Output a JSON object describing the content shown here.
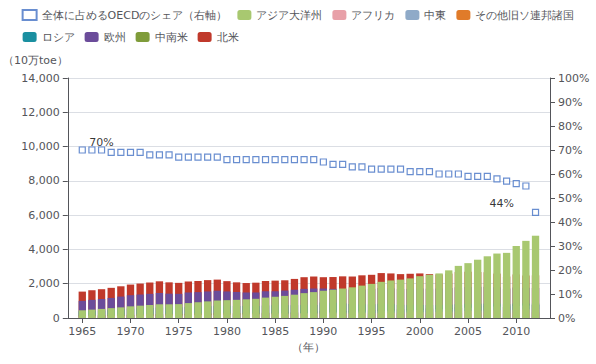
{
  "chart_data": {
    "type": "bar",
    "stacked": true,
    "grid": true,
    "legend": "top",
    "xlabel": "（年）",
    "ylabel": "（10万toe）",
    "x": [
      1965,
      1966,
      1967,
      1968,
      1969,
      1970,
      1971,
      1972,
      1973,
      1974,
      1975,
      1976,
      1977,
      1978,
      1979,
      1980,
      1981,
      1982,
      1983,
      1984,
      1985,
      1986,
      1987,
      1988,
      1989,
      1990,
      1991,
      1992,
      1993,
      1994,
      1995,
      1996,
      1997,
      1998,
      1999,
      2000,
      2001,
      2002,
      2003,
      2004,
      2005,
      2006,
      2007,
      2008,
      2009,
      2010,
      2011,
      2012
    ],
    "xlim": [
      1963.5,
      2013.5
    ],
    "xticks": [
      1965,
      1970,
      1975,
      1980,
      1985,
      1990,
      1995,
      2000,
      2005,
      2010
    ],
    "ylim": [
      0,
      14000
    ],
    "yticks": [
      0,
      {
        "value": 2000,
        "label": "2,000"
      },
      {
        "value": 4000,
        "label": "4,000"
      },
      {
        "value": 6000,
        "label": "6,000"
      },
      {
        "value": 8000,
        "label": "8,000"
      },
      {
        "value": 10000,
        "label": "10,000"
      },
      {
        "value": 12000,
        "label": "12,000"
      },
      {
        "value": 14000,
        "label": "14,000"
      }
    ],
    "y2lim": [
      0,
      1
    ],
    "y2ticks": [
      {
        "value": 0,
        "label": "0%"
      },
      {
        "value": 0.1,
        "label": "10%"
      },
      {
        "value": 0.2,
        "label": "20%"
      },
      {
        "value": 0.3,
        "label": "30%"
      },
      {
        "value": 0.4,
        "label": "40%"
      },
      {
        "value": 0.5,
        "label": "50%"
      },
      {
        "value": 0.6,
        "label": "60%"
      },
      {
        "value": 0.7,
        "label": "70%"
      },
      {
        "value": 0.8,
        "label": "80%"
      },
      {
        "value": 0.9,
        "label": "90%"
      },
      {
        "value": 1,
        "label": "100%"
      }
    ],
    "series": [
      {
        "name": "北米",
        "color": "#c0392b",
        "values": [
          1540,
          1620,
          1680,
          1760,
          1850,
          1950,
          2010,
          2070,
          2140,
          2080,
          2050,
          2130,
          2160,
          2210,
          2240,
          2150,
          2080,
          2040,
          2060,
          2160,
          2180,
          2200,
          2280,
          2380,
          2420,
          2380,
          2390,
          2430,
          2420,
          2490,
          2520,
          2620,
          2600,
          2560,
          2580,
          2600,
          2560,
          2540,
          2590,
          2680,
          2700,
          2680,
          2670,
          2590,
          2420,
          2540,
          2480,
          2490
        ]
      },
      {
        "name": "中南米",
        "color": "#7f9c3a",
        "values": [
          130,
          140,
          145,
          155,
          165,
          175,
          185,
          195,
          205,
          210,
          215,
          230,
          240,
          255,
          265,
          270,
          275,
          285,
          295,
          310,
          320,
          330,
          340,
          360,
          375,
          395,
          405,
          415,
          425,
          440,
          460,
          480,
          495,
          505,
          520,
          540,
          555,
          565,
          585,
          615,
          635,
          655,
          675,
          680,
          670,
          720,
          745,
          760
        ]
      },
      {
        "name": "欧州",
        "color": "#6b4c9a",
        "values": [
          1000,
          1060,
          1110,
          1170,
          1250,
          1330,
          1370,
          1410,
          1460,
          1420,
          1410,
          1490,
          1510,
          1550,
          1590,
          1550,
          1520,
          1490,
          1490,
          1560,
          1560,
          1600,
          1650,
          1700,
          1720,
          1720,
          1700,
          1680,
          1650,
          1670,
          1700,
          1750,
          1730,
          1700,
          1700,
          1720,
          1710,
          1720,
          1750,
          1790,
          1810,
          1820,
          1820,
          1790,
          1720,
          1780,
          1760,
          1750
        ]
      },
      {
        "name": "ロシア",
        "color": "#1a8fa0",
        "values": [
          400,
          420,
          440,
          470,
          510,
          550,
          570,
          590,
          610,
          620,
          620,
          650,
          670,
          690,
          710,
          710,
          700,
          700,
          700,
          730,
          750,
          750,
          750,
          760,
          760,
          900,
          880,
          850,
          820,
          800,
          800,
          830,
          810,
          770,
          750,
          760,
          750,
          750,
          780,
          800,
          820,
          830,
          840,
          840,
          800,
          840,
          840,
          840
        ]
      },
      {
        "name": "その他旧ソ連邦諸国",
        "color": "#e07b2a",
        "values": [
          150,
          160,
          165,
          175,
          185,
          200,
          210,
          220,
          230,
          235,
          235,
          250,
          260,
          270,
          280,
          280,
          280,
          280,
          275,
          280,
          285,
          285,
          285,
          290,
          295,
          300,
          290,
          280,
          270,
          260,
          260,
          265,
          265,
          255,
          250,
          255,
          255,
          260,
          270,
          285,
          295,
          305,
          310,
          315,
          300,
          320,
          325,
          330
        ]
      },
      {
        "name": "中東",
        "color": "#8faac8",
        "values": [
          60,
          65,
          70,
          80,
          90,
          100,
          110,
          120,
          135,
          135,
          135,
          150,
          165,
          180,
          195,
          200,
          205,
          215,
          225,
          240,
          255,
          265,
          275,
          290,
          305,
          320,
          335,
          350,
          360,
          375,
          395,
          415,
          425,
          435,
          450,
          470,
          490,
          510,
          535,
          570,
          600,
          625,
          650,
          670,
          660,
          700,
          730,
          760
        ]
      },
      {
        "name": "アフリカ",
        "color": "#e8a0a8",
        "values": [
          100,
          105,
          110,
          115,
          120,
          130,
          135,
          140,
          145,
          150,
          155,
          165,
          170,
          175,
          180,
          185,
          190,
          195,
          200,
          210,
          215,
          220,
          230,
          240,
          245,
          255,
          265,
          270,
          275,
          285,
          295,
          305,
          315,
          320,
          330,
          340,
          350,
          360,
          375,
          395,
          410,
          425,
          440,
          455,
          455,
          480,
          500,
          515
        ]
      },
      {
        "name": "アジア大洋州",
        "color": "#a8c870",
        "values": [
          450,
          490,
          530,
          575,
          620,
          680,
          720,
          760,
          800,
          800,
          810,
          870,
          920,
          970,
          1020,
          1040,
          1060,
          1090,
          1120,
          1190,
          1240,
          1290,
          1360,
          1450,
          1510,
          1590,
          1650,
          1720,
          1790,
          1890,
          1990,
          2110,
          2190,
          2240,
          2310,
          2440,
          2520,
          2600,
          2780,
          3040,
          3200,
          3400,
          3600,
          3760,
          3800,
          4200,
          4500,
          4800
        ]
      },
      {
        "name": "全体に占めるOECDのシェア（右軸）",
        "type": "scatter",
        "axis": "y2",
        "marker": "square",
        "color": "#4472c4",
        "values": [
          0.7,
          0.7,
          0.7,
          0.69,
          0.69,
          0.69,
          0.69,
          0.68,
          0.68,
          0.68,
          0.67,
          0.67,
          0.67,
          0.67,
          0.67,
          0.66,
          0.66,
          0.66,
          0.66,
          0.66,
          0.66,
          0.66,
          0.66,
          0.66,
          0.66,
          0.65,
          0.64,
          0.64,
          0.63,
          0.63,
          0.62,
          0.62,
          0.62,
          0.62,
          0.61,
          0.61,
          0.61,
          0.6,
          0.6,
          0.6,
          0.59,
          0.59,
          0.59,
          0.58,
          0.57,
          0.56,
          0.55,
          0.44
        ]
      }
    ],
    "annotations": [
      {
        "text": "70%",
        "x": 1967,
        "y": 9700
      },
      {
        "text": "44%",
        "x": 2008.5,
        "y": 6100
      }
    ]
  }
}
